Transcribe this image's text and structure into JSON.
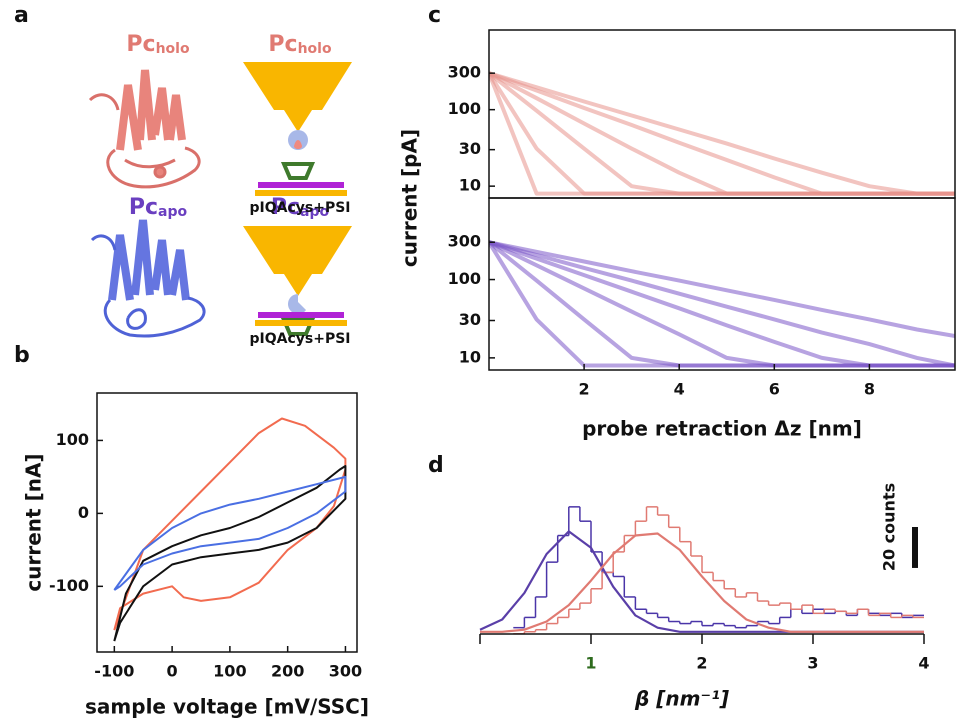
{
  "panel_labels": [
    "a",
    "b",
    "c",
    "d"
  ],
  "panel_a": {
    "protein_labels": [
      {
        "text": "Pc",
        "sub": "holo"
      },
      {
        "text": "Pc",
        "sub": "apo"
      }
    ],
    "schematic_labels": [
      {
        "text": "Pc",
        "sub": "holo"
      },
      {
        "text": "Pc",
        "sub": "apo"
      }
    ],
    "substrate_labels": [
      "pIQAcys+PSI",
      "pIQAcys+PSI"
    ]
  },
  "chart_data": [
    {
      "type": "line",
      "xlabel": "sample voltage [mV/SSC]",
      "ylabel": "current  [nA]",
      "xlim": [
        -130,
        320
      ],
      "ylim": [
        -190,
        165
      ],
      "xticks": [
        -100,
        0,
        100,
        200,
        300
      ],
      "yticks": [
        -100,
        0,
        100
      ],
      "series": [
        {
          "color": "#f26b4f",
          "x": [
            -100,
            -50,
            0,
            50,
            100,
            150,
            190,
            230,
            280,
            300,
            300,
            280,
            250,
            200,
            150,
            100,
            50,
            20,
            0,
            -50,
            -90,
            -100
          ],
          "values": [
            -160,
            -50,
            -10,
            30,
            70,
            110,
            130,
            120,
            90,
            75,
            60,
            10,
            -20,
            -50,
            -95,
            -115,
            -120,
            -115,
            -100,
            -110,
            -130,
            -160
          ]
        },
        {
          "color": "#111111",
          "x": [
            -100,
            -80,
            -50,
            0,
            50,
            100,
            150,
            200,
            250,
            290,
            300,
            300,
            250,
            200,
            150,
            100,
            50,
            0,
            -50,
            -90,
            -100
          ],
          "values": [
            -175,
            -110,
            -65,
            -45,
            -30,
            -20,
            -5,
            15,
            35,
            60,
            65,
            20,
            -20,
            -40,
            -50,
            -55,
            -60,
            -70,
            -100,
            -150,
            -175
          ]
        },
        {
          "color": "#4a6fe3",
          "x": [
            -100,
            -50,
            0,
            50,
            100,
            150,
            200,
            250,
            300,
            300,
            250,
            200,
            150,
            100,
            50,
            0,
            -50,
            -90,
            -100
          ],
          "values": [
            -105,
            -50,
            -20,
            0,
            12,
            20,
            30,
            40,
            50,
            30,
            0,
            -20,
            -35,
            -40,
            -45,
            -55,
            -70,
            -100,
            -105
          ]
        }
      ]
    },
    {
      "type": "line",
      "log_y": true,
      "ylabel": "current [pA]",
      "xlim": [
        0,
        9.8
      ],
      "ylim": [
        7,
        1100
      ],
      "yticks": [
        10,
        30,
        100,
        300
      ],
      "x": [
        0,
        1,
        2,
        3,
        4,
        5,
        6,
        7,
        8,
        9,
        9.8
      ],
      "series": [
        {
          "color": "#e8938c",
          "values": [
            300,
            8,
            8,
            8,
            8,
            8,
            8,
            8,
            8,
            8,
            8
          ]
        },
        {
          "color": "#e8938c",
          "values": [
            300,
            31,
            8,
            8,
            8,
            8,
            8,
            8,
            8,
            8,
            8
          ]
        },
        {
          "color": "#e8938c",
          "values": [
            300,
            97,
            31,
            10,
            8,
            8,
            8,
            8,
            8,
            8,
            8
          ]
        },
        {
          "color": "#e8938c",
          "values": [
            300,
            141,
            66,
            31,
            15,
            8,
            8,
            8,
            8,
            8,
            8
          ]
        },
        {
          "color": "#e8938c",
          "values": [
            300,
            178,
            105,
            63,
            37,
            22,
            13,
            8,
            8,
            8,
            8
          ]
        },
        {
          "color": "#e8938c",
          "values": [
            300,
            196,
            128,
            84,
            55,
            36,
            23,
            15,
            10,
            8,
            8
          ]
        }
      ]
    },
    {
      "type": "line",
      "log_y": true,
      "xlabel": "probe retraction Δz [nm]",
      "xlim": [
        0,
        9.8
      ],
      "ylim": [
        7,
        1100
      ],
      "xticks": [
        2,
        4,
        6,
        8
      ],
      "yticks": [
        10,
        30,
        100,
        300
      ],
      "x": [
        0,
        1,
        2,
        3,
        4,
        5,
        6,
        7,
        8,
        9,
        9.8
      ],
      "series": [
        {
          "color": "#7b57c9",
          "values": [
            300,
            31,
            8,
            8,
            8,
            8,
            8,
            8,
            8,
            8,
            8
          ]
        },
        {
          "color": "#7b57c9",
          "values": [
            300,
            97,
            31,
            10,
            8,
            8,
            8,
            8,
            8,
            8,
            8
          ]
        },
        {
          "color": "#7b57c9",
          "values": [
            300,
            152,
            77,
            39,
            20,
            10,
            8,
            8,
            8,
            8,
            8
          ]
        },
        {
          "color": "#7b57c9",
          "values": [
            300,
            185,
            114,
            70,
            43,
            26,
            16,
            10,
            8,
            8,
            8
          ]
        },
        {
          "color": "#7b57c9",
          "values": [
            300,
            206,
            141,
            97,
            66,
            45,
            31,
            21,
            15,
            10,
            8
          ]
        },
        {
          "color": "#7b57c9",
          "values": [
            300,
            226,
            170,
            128,
            97,
            73,
            55,
            41,
            31,
            23,
            19
          ]
        }
      ]
    },
    {
      "type": "histogram",
      "xlabel": "β [nm⁻¹]",
      "xlim": [
        0,
        4
      ],
      "ylim": [
        -4,
        80
      ],
      "xticks": [
        1,
        2,
        3,
        4
      ],
      "xtick_colors": [
        "#2e6b1e",
        "#111111",
        "#111111",
        "#111111"
      ],
      "bins": [
        0.3,
        0.4,
        0.5,
        0.6,
        0.7,
        0.8,
        0.9,
        1,
        1.1,
        1.2,
        1.3,
        1.4,
        1.5,
        1.6,
        1.7,
        1.8,
        1.9,
        2,
        2.1,
        2.2,
        2.3,
        2.4,
        2.5,
        2.6,
        2.7,
        2.8,
        2.9,
        3,
        3.1,
        3.2,
        3.3,
        3.4,
        3.5,
        3.6,
        3.7,
        3.8,
        3.9,
        4
      ],
      "series": [
        {
          "color": "#4a35a8",
          "values": [
            3,
            8,
            18,
            35,
            48,
            62,
            55,
            40,
            30,
            28,
            18,
            12,
            10,
            8,
            6,
            5,
            6,
            4,
            5,
            4,
            3,
            4,
            6,
            5,
            8,
            12,
            10,
            12,
            10,
            11,
            9,
            12,
            10,
            9,
            10,
            8,
            9
          ]
        },
        {
          "color": "#e07a72",
          "values": [
            0,
            1,
            2,
            5,
            8,
            12,
            15,
            22,
            30,
            40,
            48,
            55,
            62,
            58,
            52,
            45,
            38,
            30,
            26,
            22,
            18,
            20,
            16,
            14,
            15,
            12,
            14,
            10,
            12,
            11,
            10,
            12,
            9,
            10,
            8,
            9,
            8
          ]
        }
      ],
      "fits": {
        "x": [
          0,
          0.2,
          0.4,
          0.6,
          0.8,
          1,
          1.2,
          1.4,
          1.6,
          1.8,
          2,
          2.2,
          2.4,
          2.6,
          2.8,
          3,
          3.2,
          3.4,
          3.6,
          3.8,
          4
        ],
        "series": [
          {
            "color": "#5a3fa8",
            "values": [
              2,
              7,
              20,
              39,
              50,
              42,
              23,
              9,
              3,
              1,
              1,
              1,
              1,
              1,
              1,
              1,
              1,
              1,
              1,
              1,
              1
            ]
          },
          {
            "color": "#e07a72",
            "values": [
              1,
              1,
              2,
              6,
              14,
              26,
              39,
              48,
              49,
              41,
              28,
              16,
              7,
              3,
              1,
              1,
              1,
              1,
              1,
              1,
              1
            ]
          }
        ]
      },
      "scale_bar": {
        "value": 20,
        "label": "20 counts"
      }
    }
  ]
}
